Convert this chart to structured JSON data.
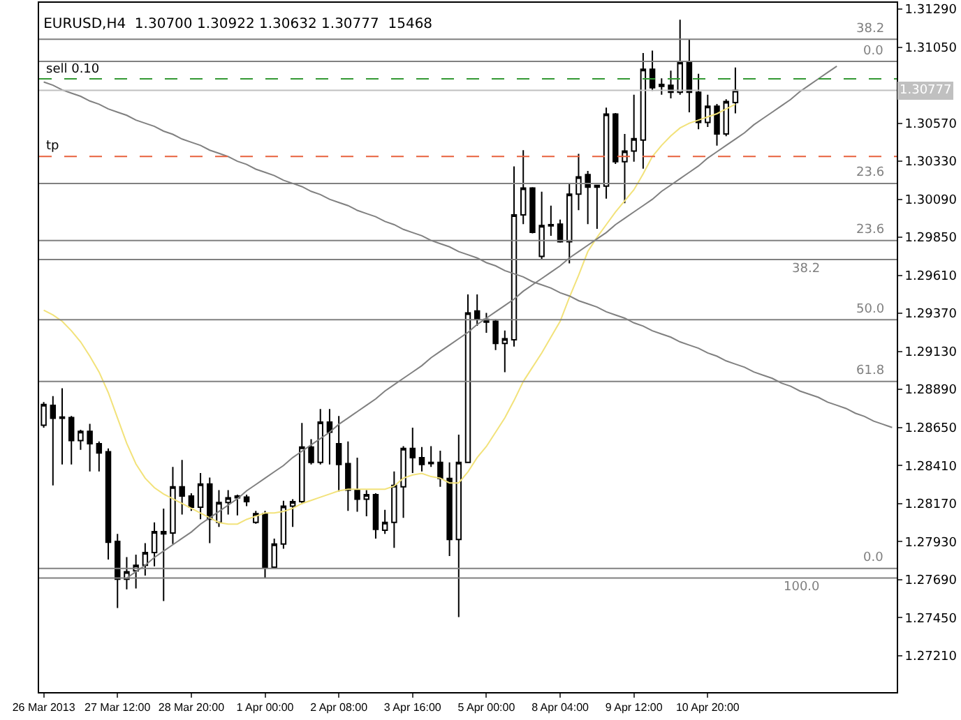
{
  "chart_data": {
    "type": "candlestick",
    "title": "EURUSD,H4  1.30700 1.30922 1.30632 1.30777  15468",
    "categories": [
      "26 Mar 2013",
      null,
      null,
      null,
      null,
      null,
      null,
      null,
      "27 Mar 12:00",
      null,
      null,
      null,
      null,
      null,
      null,
      null,
      "28 Mar 20:00",
      null,
      null,
      null,
      null,
      null,
      null,
      null,
      "1 Apr 00:00",
      null,
      null,
      null,
      null,
      null,
      null,
      null,
      "2 Apr 08:00",
      null,
      null,
      null,
      null,
      null,
      null,
      null,
      "3 Apr 16:00",
      null,
      null,
      null,
      null,
      null,
      null,
      null,
      "5 Apr 00:00",
      null,
      null,
      null,
      null,
      null,
      null,
      null,
      "8 Apr 04:00",
      null,
      null,
      null,
      null,
      null,
      null,
      null,
      "9 Apr 12:00",
      null,
      null,
      null,
      null,
      null,
      null,
      null,
      "10 Apr 20:00",
      null,
      null,
      null,
      null,
      null,
      null,
      null,
      null,
      null,
      null,
      null,
      null,
      null,
      null,
      null,
      null,
      null,
      null,
      null,
      null
    ],
    "ohlc": [
      [
        1.28664,
        1.2881,
        1.28649,
        1.28795
      ],
      [
        1.28789,
        1.28848,
        1.28284,
        1.28708
      ],
      [
        1.28716,
        1.28897,
        1.28416,
        1.28708
      ],
      [
        1.28713,
        1.28722,
        1.28416,
        1.28567
      ],
      [
        1.28567,
        1.28635,
        1.28509,
        1.28626
      ],
      [
        1.28626,
        1.28673,
        1.28372,
        1.28547
      ],
      [
        1.28547,
        1.28562,
        1.28372,
        1.28489
      ],
      [
        1.28497,
        1.28518,
        1.27817,
        1.27925
      ],
      [
        1.27931,
        1.27978,
        1.27511,
        1.27692
      ],
      [
        1.27692,
        1.27832,
        1.27628,
        1.27739
      ],
      [
        1.27745,
        1.27847,
        1.27634,
        1.2778
      ],
      [
        1.2778,
        1.2792,
        1.27715,
        1.27861
      ],
      [
        1.27861,
        1.28051,
        1.27774,
        1.27993
      ],
      [
        1.27993,
        1.28138,
        1.27555,
        1.27978
      ],
      [
        1.27984,
        1.28401,
        1.27914,
        1.28276
      ],
      [
        1.28276,
        1.28445,
        1.28101,
        1.28217
      ],
      [
        1.28217,
        1.28235,
        1.28124,
        1.28147
      ],
      [
        1.28147,
        1.28363,
        1.28071,
        1.28293
      ],
      [
        1.28293,
        1.28334,
        1.2792,
        1.28071
      ],
      [
        1.28051,
        1.28255,
        1.28022,
        1.28176
      ],
      [
        1.28176,
        1.28255,
        1.28101,
        1.28206
      ],
      [
        1.28206,
        1.28226,
        1.28095,
        1.28217
      ],
      [
        1.28211,
        1.28226,
        1.28153,
        1.28182
      ],
      [
        1.28051,
        1.28124,
        1.28042,
        1.28106
      ],
      [
        1.28106,
        1.28124,
        1.27701,
        1.27768
      ],
      [
        1.27768,
        1.27949,
        1.27759,
        1.27914
      ],
      [
        1.27914,
        1.28188,
        1.27885,
        1.28153
      ],
      [
        1.28153,
        1.28197,
        1.28022,
        1.28182
      ],
      [
        1.28182,
        1.28678,
        1.28168,
        1.28527
      ],
      [
        1.28527,
        1.28576,
        1.28416,
        1.2843
      ],
      [
        1.2843,
        1.28766,
        1.28416,
        1.28684
      ],
      [
        1.28684,
        1.28766,
        1.28416,
        1.2862
      ],
      [
        1.28547,
        1.28722,
        1.28246,
        1.28416
      ],
      [
        1.28422,
        1.28562,
        1.28124,
        1.28255
      ],
      [
        1.28255,
        1.28459,
        1.28118,
        1.28197
      ],
      [
        1.28197,
        1.28255,
        1.28089,
        1.28226
      ],
      [
        1.28226,
        1.28235,
        1.27949,
        1.28007
      ],
      [
        1.28001,
        1.2813,
        1.27978,
        1.28051
      ],
      [
        1.28051,
        1.28372,
        1.2789,
        1.28284
      ],
      [
        1.28276,
        1.28532,
        1.2808,
        1.28518
      ],
      [
        1.28518,
        1.28649,
        1.28363,
        1.28459
      ],
      [
        1.28459,
        1.28527,
        1.28372,
        1.28416
      ],
      [
        1.2843,
        1.28532,
        1.28401,
        1.28422
      ],
      [
        1.2843,
        1.28503,
        1.28276,
        1.28328
      ],
      [
        1.28328,
        1.2843,
        1.27838,
        1.27943
      ],
      [
        1.27943,
        1.28605,
        1.27453,
        1.2843
      ],
      [
        1.2843,
        1.2949,
        1.2843,
        1.29373
      ],
      [
        1.29385,
        1.2949,
        1.29291,
        1.29335
      ],
      [
        1.29332,
        1.29373,
        1.29247,
        1.29315
      ],
      [
        1.2932,
        1.29332,
        1.29139,
        1.2918
      ],
      [
        1.2918,
        1.29262,
        1.28999,
        1.2921
      ],
      [
        1.29204,
        1.30298,
        1.2916,
        1.29992
      ],
      [
        1.29992,
        1.304,
        1.29933,
        1.30161
      ],
      [
        1.30161,
        1.30167,
        1.29875,
        1.29881
      ],
      [
        1.29729,
        1.30138,
        1.29714,
        1.29924
      ],
      [
        1.2993,
        1.3005,
        1.2986,
        1.29922
      ],
      [
        1.29933,
        1.29962,
        1.29817,
        1.29822
      ],
      [
        1.29822,
        1.3019,
        1.29685,
        1.30123
      ],
      [
        1.30123,
        1.30377,
        1.30021,
        1.30231
      ],
      [
        1.30246,
        1.30269,
        1.29933,
        1.30167
      ],
      [
        1.30178,
        1.30181,
        1.29904,
        1.30167
      ],
      [
        1.30173,
        1.30669,
        1.30094,
        1.30628
      ],
      [
        1.30628,
        1.30634,
        1.30313,
        1.30327
      ],
      [
        1.30327,
        1.30502,
        1.30065,
        1.30394
      ],
      [
        1.30394,
        1.3075,
        1.30327,
        1.30473
      ],
      [
        1.30464,
        1.31013,
        1.30283,
        1.30911
      ],
      [
        1.30911,
        1.31028,
        1.30774,
        1.30794
      ],
      [
        1.30815,
        1.30853,
        1.3075,
        1.30803
      ],
      [
        1.30809,
        1.30902,
        1.30727,
        1.30765
      ],
      [
        1.30765,
        1.31223,
        1.3075,
        1.30955
      ],
      [
        1.30955,
        1.31101,
        1.30639,
        1.30765
      ],
      [
        1.30765,
        1.30882,
        1.30532,
        1.30575
      ],
      [
        1.30575,
        1.3075,
        1.30546,
        1.30677
      ],
      [
        1.30677,
        1.30692,
        1.30429,
        1.30502
      ],
      [
        1.30502,
        1.30721,
        1.30488,
        1.30707
      ],
      [
        1.307,
        1.30922,
        1.30632,
        1.30777
      ],
      null,
      null,
      null,
      null,
      null,
      null,
      null,
      null,
      null,
      null,
      null,
      null,
      null,
      null,
      null,
      null,
      null
    ],
    "series": [
      {
        "type": "line",
        "color": "#f2e27a",
        "values": [
          1.2939,
          1.2936,
          1.2932,
          1.2926,
          1.2919,
          1.291,
          1.29,
          1.2887,
          1.2871,
          1.2855,
          1.2842,
          1.2833,
          1.2827,
          1.2823,
          1.282,
          1.2817,
          1.2814,
          1.2811,
          1.2808,
          1.2805,
          1.2804,
          1.2804,
          1.2807,
          1.2809,
          1.2811,
          1.2811,
          1.2812,
          1.2814,
          1.2817,
          1.2819,
          1.2821,
          1.2823,
          1.2825,
          1.2826,
          1.2826,
          1.2826,
          1.2826,
          1.2826,
          1.2828,
          1.2833,
          1.2835,
          1.2836,
          1.2834,
          1.2833,
          1.283,
          1.283,
          1.2837,
          1.2846,
          1.2853,
          1.2862,
          1.2871,
          1.2882,
          1.2894,
          1.2903,
          1.2912,
          1.2922,
          1.2932,
          1.2947,
          1.2961,
          1.2976,
          1.2985,
          1.2993,
          1.3001,
          1.3008,
          1.3015,
          1.3025,
          1.3036,
          1.3043,
          1.3049,
          1.3054,
          1.3057,
          1.3059,
          1.3061,
          1.3063,
          1.3066,
          1.3069,
          null,
          null,
          null,
          null,
          null,
          null,
          null,
          null,
          null,
          null,
          null,
          null,
          null,
          null,
          null,
          null,
          null
        ]
      },
      {
        "type": "line",
        "color": "#808080",
        "values": [
          1.3083,
          1.3081,
          1.3078,
          1.3076,
          1.3074,
          1.3071,
          1.3069,
          1.3066,
          1.3064,
          1.3062,
          1.3059,
          1.3057,
          1.3055,
          1.3052,
          1.305,
          1.3047,
          1.3045,
          1.3043,
          1.304,
          1.3038,
          1.3036,
          1.3033,
          1.3031,
          1.3028,
          1.3026,
          1.3024,
          1.3021,
          1.3019,
          1.3017,
          1.3014,
          1.3012,
          1.3009,
          1.3007,
          1.3005,
          1.3002,
          1.3,
          1.2998,
          1.2995,
          1.2993,
          1.299,
          1.2988,
          1.2986,
          1.2983,
          1.2981,
          1.2979,
          1.2976,
          1.2974,
          1.2972,
          1.2969,
          1.2967,
          1.2964,
          1.2962,
          1.296,
          1.2957,
          1.2955,
          1.2953,
          1.295,
          1.2948,
          1.2945,
          1.2943,
          1.2941,
          1.2938,
          1.2936,
          1.2934,
          1.2931,
          1.2929,
          1.2926,
          1.2924,
          1.2922,
          1.2919,
          1.2917,
          1.2915,
          1.2912,
          1.291,
          1.2907,
          1.2905,
          1.2903,
          1.29,
          1.2898,
          1.2896,
          1.2893,
          1.2891,
          1.2888,
          1.2886,
          1.2884,
          1.2881,
          1.2879,
          1.2877,
          1.2874,
          1.2872,
          1.2869,
          1.2867,
          1.2865
        ]
      },
      {
        "type": "line",
        "color": "#808080",
        "values": [
          null,
          null,
          null,
          null,
          null,
          null,
          null,
          null,
          null,
          1.277,
          1.2774,
          1.2778,
          1.2783,
          1.2787,
          1.2791,
          1.2795,
          1.2799,
          1.2804,
          1.2808,
          1.2812,
          1.2816,
          1.282,
          1.2825,
          1.2829,
          1.2833,
          1.2837,
          1.2841,
          1.2846,
          1.285,
          1.2854,
          1.2858,
          1.2862,
          1.2867,
          1.2871,
          1.2875,
          1.2879,
          1.2883,
          1.2888,
          1.2892,
          1.2896,
          1.29,
          1.2904,
          1.2909,
          1.2913,
          1.2917,
          1.2921,
          1.2925,
          1.293,
          1.2934,
          1.2938,
          1.2942,
          1.2946,
          1.2951,
          1.2955,
          1.2959,
          1.2963,
          1.2967,
          1.2972,
          1.2976,
          1.298,
          1.2984,
          1.2988,
          1.2993,
          1.2997,
          1.3001,
          1.3005,
          1.3009,
          1.3014,
          1.3018,
          1.3022,
          1.3026,
          1.303,
          1.3035,
          1.3039,
          1.3043,
          1.3047,
          1.3051,
          1.3056,
          1.306,
          1.3064,
          1.3068,
          1.3072,
          1.3077,
          1.3081,
          1.3085,
          1.3089,
          1.3093,
          null,
          null,
          null,
          null,
          null,
          null
        ]
      }
    ],
    "ylim": [
      1.2698,
      1.3133
    ],
    "yticks": [
      {
        "value": 1.2721,
        "label": "1.27210"
      },
      {
        "value": 1.2745,
        "label": "1.27450"
      },
      {
        "value": 1.2769,
        "label": "1.27690"
      },
      {
        "value": 1.2793,
        "label": "1.27930"
      },
      {
        "value": 1.2817,
        "label": "1.28170"
      },
      {
        "value": 1.2841,
        "label": "1.28410"
      },
      {
        "value": 1.2865,
        "label": "1.28650"
      },
      {
        "value": 1.2889,
        "label": "1.28890"
      },
      {
        "value": 1.2913,
        "label": "1.29130"
      },
      {
        "value": 1.2937,
        "label": "1.29370"
      },
      {
        "value": 1.2961,
        "label": "1.29610"
      },
      {
        "value": 1.2985,
        "label": "1.29850"
      },
      {
        "value": 1.3009,
        "label": "1.30090"
      },
      {
        "value": 1.3033,
        "label": "1.30330"
      },
      {
        "value": 1.3057,
        "label": "1.30570"
      },
      {
        "value": 1.3081,
        "label": null
      },
      {
        "value": 1.3105,
        "label": "1.31050"
      },
      {
        "value": 1.3129,
        "label": "1.31290"
      }
    ],
    "ref_lines": [
      {
        "axis": "y",
        "value": 1.311,
        "color": "#808080"
      },
      {
        "axis": "y",
        "value": 1.2983,
        "color": "#808080"
      },
      {
        "axis": "y",
        "value": 1.2776,
        "color": "#808080"
      },
      {
        "axis": "y",
        "value": 1.3096,
        "color": "#808080"
      },
      {
        "axis": "y",
        "value": 1.3019,
        "color": "#808080"
      },
      {
        "axis": "y",
        "value": 1.2971,
        "color": "#808080"
      },
      {
        "axis": "y",
        "value": 1.2933,
        "color": "#808080"
      },
      {
        "axis": "y",
        "value": 1.2894,
        "color": "#808080"
      },
      {
        "axis": "y",
        "value": 1.277,
        "color": "#808080"
      },
      {
        "axis": "y",
        "value": 1.3085,
        "label": "sell 0.10",
        "color": "#339933",
        "line_style": "dashed"
      },
      {
        "axis": "y",
        "value": 1.3036,
        "label": "tp",
        "color": "#e8603c",
        "line_style": "dashed"
      },
      {
        "axis": "y",
        "value": 1.30777,
        "label": "1.30777",
        "color": "#c0c0c0"
      }
    ],
    "annotations": [
      {
        "text": "38.2",
        "y": 1.311
      },
      {
        "text": "23.6",
        "y": 1.2983
      },
      {
        "text": "0.0",
        "y": 1.2776
      },
      {
        "text": "0.0",
        "y": 1.3096
      },
      {
        "text": "23.6",
        "y": 1.3019
      },
      {
        "text": "38.2",
        "y": 1.2971
      },
      {
        "text": "50.0",
        "y": 1.2933
      },
      {
        "text": "61.8",
        "y": 1.2894
      },
      {
        "text": "100.0",
        "y": 1.277
      }
    ]
  }
}
